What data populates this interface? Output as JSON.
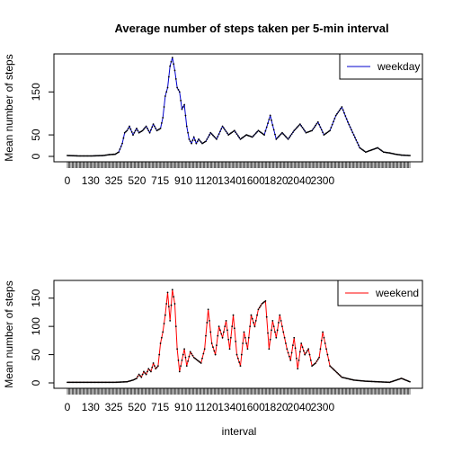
{
  "chart_data": [
    {
      "type": "line",
      "title": "Average number of steps taken per 5-min interval",
      "xlabel": "",
      "ylabel": "Mean number of steps",
      "ylim": [
        0,
        230
      ],
      "yticks": [
        0,
        50,
        150
      ],
      "xtick_labels": [
        "0",
        "130",
        "325",
        "520",
        "715",
        "910",
        "1120",
        "1340",
        "1600",
        "1820",
        "2040",
        "2300"
      ],
      "x_count": 288,
      "legend": {
        "position": "top-right"
      },
      "series": [
        {
          "name": "weekday",
          "color": "#0000cc",
          "x": [
            0,
            10,
            20,
            30,
            35,
            40,
            43,
            46,
            48,
            50,
            52,
            55,
            58,
            60,
            63,
            66,
            69,
            72,
            75,
            78,
            80,
            82,
            84,
            86,
            88,
            90,
            92,
            94,
            96,
            98,
            100,
            102,
            104,
            106,
            108,
            110,
            113,
            116,
            120,
            125,
            130,
            135,
            140,
            145,
            150,
            155,
            160,
            165,
            170,
            175,
            180,
            185,
            190,
            195,
            200,
            205,
            210,
            215,
            220,
            225,
            230,
            235,
            240,
            245,
            250,
            255,
            260,
            265,
            270,
            275,
            280,
            287
          ],
          "values": [
            2,
            1,
            1,
            2,
            4,
            5,
            10,
            30,
            55,
            60,
            70,
            50,
            65,
            55,
            60,
            70,
            55,
            75,
            60,
            65,
            90,
            140,
            160,
            210,
            230,
            200,
            160,
            150,
            110,
            120,
            70,
            40,
            30,
            45,
            30,
            40,
            30,
            35,
            55,
            40,
            70,
            50,
            60,
            40,
            50,
            45,
            60,
            50,
            95,
            40,
            55,
            40,
            60,
            75,
            55,
            60,
            80,
            50,
            60,
            95,
            115,
            80,
            50,
            20,
            10,
            15,
            20,
            10,
            8,
            5,
            3,
            2
          ]
        },
        {
          "name": "weekend",
          "color": "#ff0000",
          "x": [
            0,
            20,
            40,
            50,
            55,
            58,
            60,
            62,
            64,
            66,
            68,
            70,
            72,
            74,
            76,
            78,
            80,
            82,
            84,
            86,
            88,
            90,
            92,
            94,
            96,
            98,
            100,
            103,
            106,
            109,
            112,
            115,
            118,
            121,
            124,
            127,
            130,
            133,
            136,
            139,
            142,
            145,
            148,
            151,
            154,
            157,
            160,
            163,
            166,
            169,
            172,
            175,
            178,
            181,
            184,
            187,
            190,
            193,
            196,
            199,
            202,
            205,
            208,
            211,
            214,
            217,
            220,
            225,
            230,
            240,
            250,
            260,
            270,
            280,
            287
          ],
          "values": [
            1,
            1,
            1,
            2,
            5,
            8,
            15,
            10,
            20,
            15,
            25,
            20,
            35,
            25,
            30,
            70,
            90,
            120,
            160,
            110,
            165,
            140,
            60,
            20,
            40,
            60,
            30,
            55,
            45,
            40,
            35,
            60,
            130,
            70,
            50,
            100,
            80,
            110,
            60,
            120,
            50,
            30,
            90,
            60,
            120,
            100,
            130,
            140,
            145,
            60,
            110,
            80,
            120,
            90,
            60,
            40,
            80,
            25,
            70,
            50,
            60,
            30,
            35,
            45,
            90,
            60,
            30,
            20,
            10,
            5,
            3,
            2,
            1,
            8,
            2
          ]
        }
      ]
    }
  ],
  "panels": [
    {
      "title": "Average number of steps taken per 5-min interval",
      "legend_label": "weekday",
      "ylabel": "Mean number of steps",
      "xlabel": ""
    },
    {
      "title": "",
      "legend_label": "weekend",
      "ylabel": "Mean number of steps",
      "xlabel": "interval"
    }
  ]
}
